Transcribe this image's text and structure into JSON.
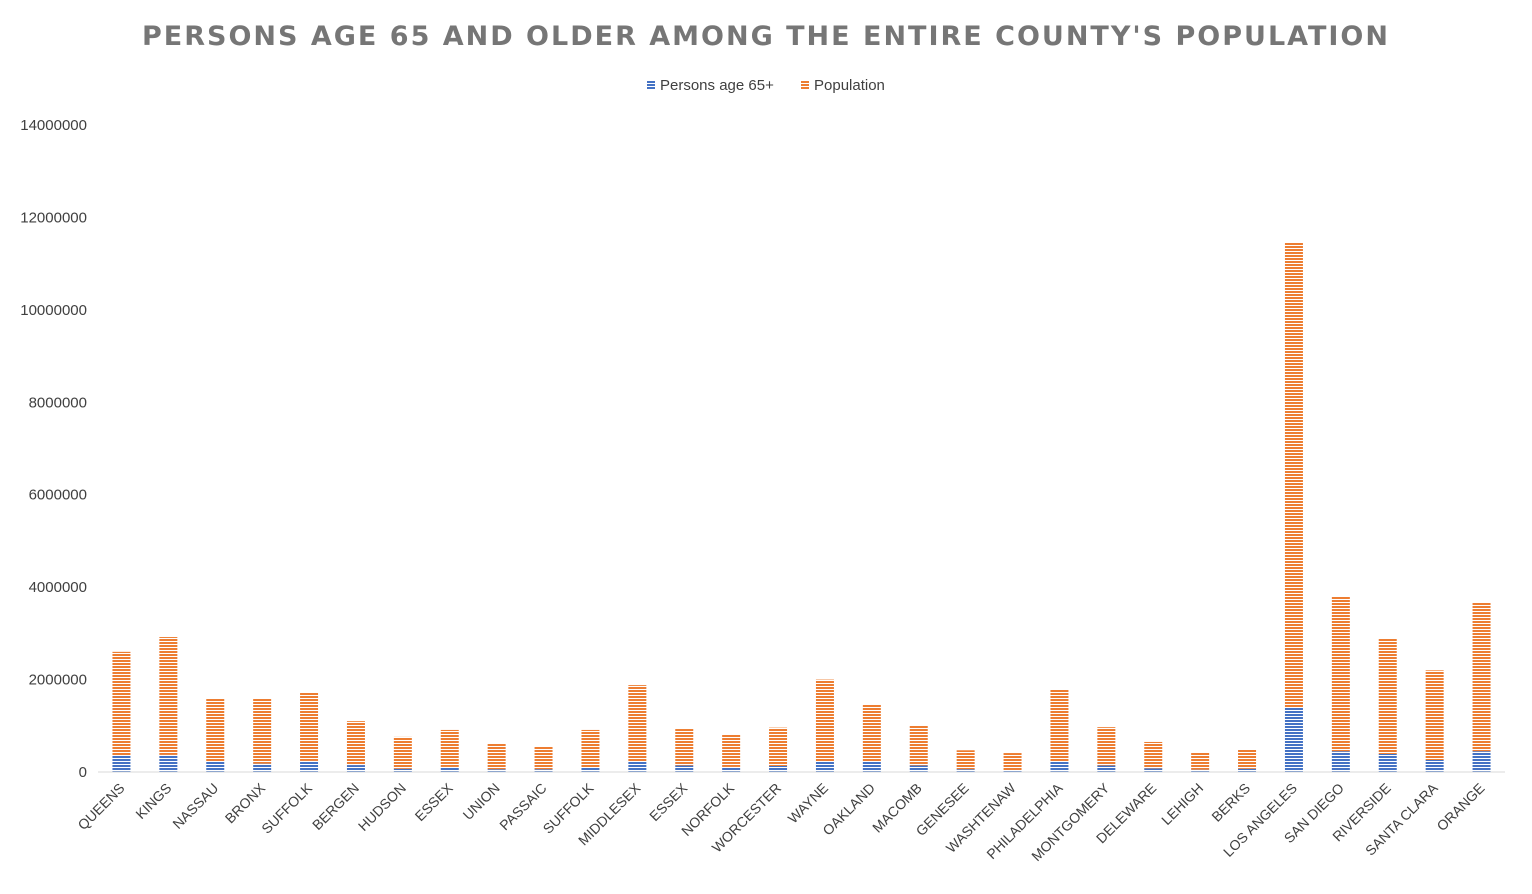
{
  "chart_data": {
    "type": "bar",
    "stacked": true,
    "title": "PERSONS AGE 65 AND OLDER AMONG THE ENTIRE COUNTY'S POPULATION",
    "xlabel": "",
    "ylabel": "",
    "ylim": [
      0,
      14000000
    ],
    "yticks": [
      "0",
      "2000000",
      "4000000",
      "6000000",
      "8000000",
      "10000000",
      "12000000",
      "14000000"
    ],
    "grid": false,
    "legend_position": "top",
    "categories": [
      "QUEENS",
      "KINGS",
      "NASSAU",
      "BRONX",
      "SUFFOLK",
      "BERGEN",
      "HUDSON",
      "ESSEX",
      "UNION",
      "PASSAIC",
      "SUFFOLK",
      "MIDDLESEX",
      "ESSEX",
      "NORFOLK",
      "WORCESTER",
      "WAYNE",
      "OAKLAND",
      "MACOMB",
      "GENESEE",
      "WASHTENAW",
      "PHILADELPHIA",
      "MONTGOMERY",
      "DELEWARE",
      "LEHIGH",
      "BERKS",
      "LOS ANGELES",
      "SAN DIEGO",
      "RIVERSIDE",
      "SANTA CLARA",
      "ORANGE"
    ],
    "series": [
      {
        "name": "Persons age 65+",
        "color": "#4472C4",
        "values": [
          350000,
          370000,
          230000,
          180000,
          240000,
          150000,
          70000,
          110000,
          60000,
          60000,
          100000,
          230000,
          140000,
          110000,
          130000,
          220000,
          220000,
          140000,
          60000,
          40000,
          220000,
          140000,
          80000,
          50000,
          70000,
          1400000,
          450000,
          390000,
          260000,
          450000
        ]
      },
      {
        "name": "Population",
        "color": "#ED7D31",
        "values": [
          2250000,
          2550000,
          1370000,
          1420000,
          1490000,
          950000,
          690000,
          800000,
          550000,
          500000,
          810000,
          1650000,
          790000,
          710000,
          830000,
          1780000,
          1250000,
          870000,
          410000,
          370000,
          1570000,
          830000,
          570000,
          380000,
          420000,
          10060000,
          3350000,
          2490000,
          1940000,
          3220000
        ]
      }
    ]
  }
}
